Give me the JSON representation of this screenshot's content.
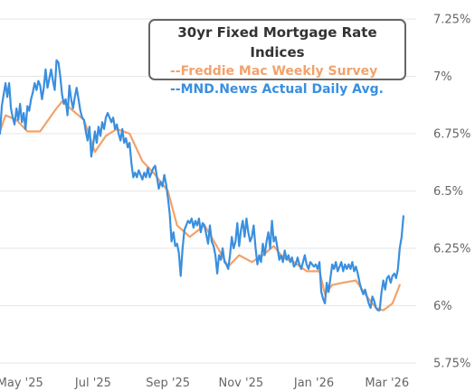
{
  "chart_data": {
    "type": "line",
    "title": "30yr Fixed Mortgage Rate Indices",
    "ylim": [
      5.75,
      7.25
    ],
    "xlim": [
      0,
      11.4
    ],
    "y_ticks": [
      {
        "v": 7.25,
        "label": "7.25%"
      },
      {
        "v": 7.0,
        "label": "7%"
      },
      {
        "v": 6.75,
        "label": "6.75%"
      },
      {
        "v": 6.5,
        "label": "6.5%"
      },
      {
        "v": 6.25,
        "label": "6.25%"
      },
      {
        "v": 6.0,
        "label": "6%"
      },
      {
        "v": 5.75,
        "label": "5.75%"
      }
    ],
    "x_ticks": [
      {
        "v": 0.55,
        "label": "May '25"
      },
      {
        "v": 2.55,
        "label": "Jul '25"
      },
      {
        "v": 4.6,
        "label": "Sep '25"
      },
      {
        "v": 6.6,
        "label": "Nov '25"
      },
      {
        "v": 8.6,
        "label": "Jan '26"
      },
      {
        "v": 10.6,
        "label": "Mar '26"
      }
    ],
    "series": [
      {
        "name": "--Freddie Mac Weekly Survey",
        "color": "#f2a26b",
        "points": [
          [
            0,
            6.76
          ],
          [
            0.15,
            6.83
          ],
          [
            0.45,
            6.81
          ],
          [
            0.75,
            6.76
          ],
          [
            1.1,
            6.76
          ],
          [
            1.5,
            6.85
          ],
          [
            1.7,
            6.89
          ],
          [
            2.0,
            6.85
          ],
          [
            2.3,
            6.81
          ],
          [
            2.6,
            6.67
          ],
          [
            2.9,
            6.74
          ],
          [
            3.2,
            6.77
          ],
          [
            3.55,
            6.75
          ],
          [
            3.9,
            6.63
          ],
          [
            4.2,
            6.58
          ],
          [
            4.6,
            6.5
          ],
          [
            4.85,
            6.35
          ],
          [
            5.2,
            6.3
          ],
          [
            5.6,
            6.35
          ],
          [
            5.9,
            6.27
          ],
          [
            6.25,
            6.17
          ],
          [
            6.55,
            6.22
          ],
          [
            6.9,
            6.19
          ],
          [
            7.2,
            6.22
          ],
          [
            7.5,
            6.26
          ],
          [
            7.75,
            6.21
          ],
          [
            8.05,
            6.19
          ],
          [
            8.4,
            6.15
          ],
          [
            8.75,
            6.15
          ],
          [
            8.9,
            6.05
          ],
          [
            9.1,
            6.09
          ],
          [
            9.4,
            6.1
          ],
          [
            9.75,
            6.11
          ],
          [
            10.05,
            6.04
          ],
          [
            10.3,
            5.99
          ],
          [
            10.5,
            5.98
          ],
          [
            10.75,
            6.01
          ],
          [
            10.95,
            6.09
          ]
        ]
      },
      {
        "name": "--MND.News Actual Daily Avg.",
        "color": "#3a8fdf",
        "points": [
          [
            0,
            6.75
          ],
          [
            0.05,
            6.87
          ],
          [
            0.1,
            6.92
          ],
          [
            0.15,
            6.97
          ],
          [
            0.2,
            6.91
          ],
          [
            0.25,
            6.97
          ],
          [
            0.3,
            6.86
          ],
          [
            0.35,
            6.82
          ],
          [
            0.4,
            6.79
          ],
          [
            0.45,
            6.86
          ],
          [
            0.5,
            6.81
          ],
          [
            0.55,
            6.88
          ],
          [
            0.6,
            6.8
          ],
          [
            0.65,
            6.84
          ],
          [
            0.7,
            6.77
          ],
          [
            0.75,
            6.87
          ],
          [
            0.8,
            6.85
          ],
          [
            0.85,
            6.9
          ],
          [
            0.9,
            6.93
          ],
          [
            0.95,
            6.97
          ],
          [
            1.0,
            6.94
          ],
          [
            1.05,
            6.98
          ],
          [
            1.1,
            6.96
          ],
          [
            1.15,
            6.9
          ],
          [
            1.2,
            6.95
          ],
          [
            1.25,
            7.03
          ],
          [
            1.3,
            6.95
          ],
          [
            1.35,
            6.99
          ],
          [
            1.4,
            7.03
          ],
          [
            1.45,
            6.98
          ],
          [
            1.5,
            6.94
          ],
          [
            1.55,
            7.07
          ],
          [
            1.6,
            7.06
          ],
          [
            1.65,
            7.0
          ],
          [
            1.7,
            6.92
          ],
          [
            1.75,
            6.88
          ],
          [
            1.8,
            6.9
          ],
          [
            1.85,
            6.83
          ],
          [
            1.9,
            6.96
          ],
          [
            1.95,
            6.9
          ],
          [
            2.0,
            6.86
          ],
          [
            2.05,
            6.91
          ],
          [
            2.1,
            6.95
          ],
          [
            2.15,
            6.9
          ],
          [
            2.2,
            6.85
          ],
          [
            2.25,
            6.82
          ],
          [
            2.3,
            6.81
          ],
          [
            2.35,
            6.76
          ],
          [
            2.4,
            6.72
          ],
          [
            2.45,
            6.78
          ],
          [
            2.5,
            6.65
          ],
          [
            2.55,
            6.7
          ],
          [
            2.6,
            6.76
          ],
          [
            2.65,
            6.71
          ],
          [
            2.7,
            6.78
          ],
          [
            2.75,
            6.74
          ],
          [
            2.8,
            6.8
          ],
          [
            2.85,
            6.77
          ],
          [
            2.9,
            6.82
          ],
          [
            2.95,
            6.84
          ],
          [
            3.0,
            6.82
          ],
          [
            3.05,
            6.8
          ],
          [
            3.1,
            6.82
          ],
          [
            3.15,
            6.77
          ],
          [
            3.2,
            6.79
          ],
          [
            3.25,
            6.75
          ],
          [
            3.3,
            6.72
          ],
          [
            3.35,
            6.77
          ],
          [
            3.4,
            6.71
          ],
          [
            3.45,
            6.73
          ],
          [
            3.5,
            6.69
          ],
          [
            3.55,
            6.71
          ],
          [
            3.6,
            6.62
          ],
          [
            3.65,
            6.56
          ],
          [
            3.7,
            6.58
          ],
          [
            3.75,
            6.56
          ],
          [
            3.8,
            6.59
          ],
          [
            3.85,
            6.57
          ],
          [
            3.9,
            6.55
          ],
          [
            3.95,
            6.58
          ],
          [
            4.0,
            6.56
          ],
          [
            4.05,
            6.6
          ],
          [
            4.1,
            6.56
          ],
          [
            4.15,
            6.58
          ],
          [
            4.2,
            6.6
          ],
          [
            4.25,
            6.61
          ],
          [
            4.3,
            6.56
          ],
          [
            4.35,
            6.51
          ],
          [
            4.4,
            6.54
          ],
          [
            4.45,
            6.52
          ],
          [
            4.5,
            6.57
          ],
          [
            4.55,
            6.53
          ],
          [
            4.6,
            6.47
          ],
          [
            4.65,
            6.4
          ],
          [
            4.7,
            6.28
          ],
          [
            4.75,
            6.32
          ],
          [
            4.8,
            6.26
          ],
          [
            4.85,
            6.27
          ],
          [
            4.9,
            6.23
          ],
          [
            4.95,
            6.13
          ],
          [
            5.0,
            6.25
          ],
          [
            5.05,
            6.33
          ],
          [
            5.1,
            6.35
          ],
          [
            5.15,
            6.37
          ],
          [
            5.2,
            6.36
          ],
          [
            5.25,
            6.38
          ],
          [
            5.3,
            6.34
          ],
          [
            5.35,
            6.37
          ],
          [
            5.4,
            6.35
          ],
          [
            5.45,
            6.38
          ],
          [
            5.5,
            6.32
          ],
          [
            5.55,
            6.36
          ],
          [
            5.6,
            6.35
          ],
          [
            5.65,
            6.31
          ],
          [
            5.7,
            6.27
          ],
          [
            5.75,
            6.35
          ],
          [
            5.8,
            6.28
          ],
          [
            5.85,
            6.26
          ],
          [
            5.9,
            6.22
          ],
          [
            5.95,
            6.14
          ],
          [
            6.0,
            6.22
          ],
          [
            6.05,
            6.2
          ],
          [
            6.1,
            6.25
          ],
          [
            6.15,
            6.19
          ],
          [
            6.2,
            6.18
          ],
          [
            6.25,
            6.16
          ],
          [
            6.3,
            6.22
          ],
          [
            6.35,
            6.3
          ],
          [
            6.4,
            6.25
          ],
          [
            6.45,
            6.28
          ],
          [
            6.5,
            6.36
          ],
          [
            6.55,
            6.26
          ],
          [
            6.6,
            6.33
          ],
          [
            6.65,
            6.37
          ],
          [
            6.7,
            6.3
          ],
          [
            6.75,
            6.38
          ],
          [
            6.8,
            6.32
          ],
          [
            6.85,
            6.28
          ],
          [
            6.9,
            6.3
          ],
          [
            6.95,
            6.35
          ],
          [
            7.0,
            6.25
          ],
          [
            7.05,
            6.18
          ],
          [
            7.1,
            6.22
          ],
          [
            7.15,
            6.19
          ],
          [
            7.2,
            6.27
          ],
          [
            7.25,
            6.22
          ],
          [
            7.3,
            6.28
          ],
          [
            7.35,
            6.32
          ],
          [
            7.4,
            6.25
          ],
          [
            7.45,
            6.37
          ],
          [
            7.5,
            6.28
          ],
          [
            7.55,
            6.3
          ],
          [
            7.6,
            6.25
          ],
          [
            7.65,
            6.2
          ],
          [
            7.7,
            6.22
          ],
          [
            7.75,
            6.19
          ],
          [
            7.8,
            6.24
          ],
          [
            7.85,
            6.2
          ],
          [
            7.9,
            6.22
          ],
          [
            7.95,
            6.19
          ],
          [
            8.0,
            6.21
          ],
          [
            8.05,
            6.17
          ],
          [
            8.1,
            6.18
          ],
          [
            8.15,
            6.21
          ],
          [
            8.2,
            6.18
          ],
          [
            8.25,
            6.16
          ],
          [
            8.3,
            6.19
          ],
          [
            8.35,
            6.22
          ],
          [
            8.4,
            6.18
          ],
          [
            8.45,
            6.16
          ],
          [
            8.5,
            6.19
          ],
          [
            8.55,
            6.18
          ],
          [
            8.6,
            6.17
          ],
          [
            8.65,
            6.18
          ],
          [
            8.7,
            6.16
          ],
          [
            8.75,
            6.19
          ],
          [
            8.8,
            6.06
          ],
          [
            8.85,
            6.03
          ],
          [
            8.9,
            6.01
          ],
          [
            8.95,
            6.1
          ],
          [
            9.0,
            6.06
          ],
          [
            9.05,
            6.12
          ],
          [
            9.1,
            6.18
          ],
          [
            9.15,
            6.16
          ],
          [
            9.2,
            6.19
          ],
          [
            9.25,
            6.15
          ],
          [
            9.3,
            6.17
          ],
          [
            9.35,
            6.19
          ],
          [
            9.4,
            6.15
          ],
          [
            9.45,
            6.18
          ],
          [
            9.5,
            6.16
          ],
          [
            9.55,
            6.18
          ],
          [
            9.6,
            6.16
          ],
          [
            9.65,
            6.19
          ],
          [
            9.7,
            6.15
          ],
          [
            9.75,
            6.17
          ],
          [
            9.8,
            6.14
          ],
          [
            9.85,
            6.1
          ],
          [
            9.9,
            6.07
          ],
          [
            9.95,
            6.05
          ],
          [
            10.0,
            6.07
          ],
          [
            10.05,
            6.04
          ],
          [
            10.1,
            6.01
          ],
          [
            10.15,
            5.99
          ],
          [
            10.2,
            6.04
          ],
          [
            10.25,
            6.02
          ],
          [
            10.3,
            5.99
          ],
          [
            10.35,
            5.98
          ],
          [
            10.4,
            5.98
          ],
          [
            10.45,
            6.06
          ],
          [
            10.5,
            6.11
          ],
          [
            10.55,
            6.07
          ],
          [
            10.6,
            6.12
          ],
          [
            10.65,
            6.13
          ],
          [
            10.7,
            6.1
          ],
          [
            10.75,
            6.13
          ],
          [
            10.8,
            6.14
          ],
          [
            10.85,
            6.12
          ],
          [
            10.9,
            6.16
          ],
          [
            10.95,
            6.25
          ],
          [
            11.0,
            6.3
          ],
          [
            11.05,
            6.39
          ]
        ]
      }
    ],
    "grid": true,
    "legend_position": "top-right"
  }
}
